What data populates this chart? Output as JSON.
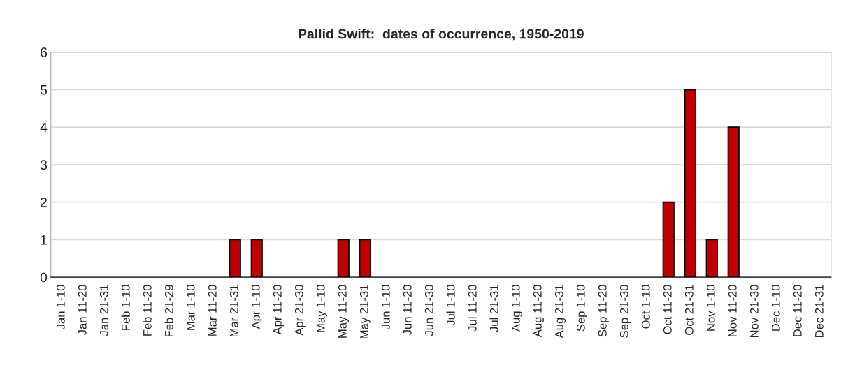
{
  "chart_data": {
    "type": "bar",
    "title": "Pallid Swift:  dates of occurrence, 1950-2019",
    "categories": [
      "Jan 1-10",
      "Jan 11-20",
      "Jan 21-31",
      "Feb 1-10",
      "Feb 11-20",
      "Feb 21-29",
      "Mar 1-10",
      "Mar 11-20",
      "Mar 21-31",
      "Apr 1-10",
      "Apr 11-20",
      "Apr 21-30",
      "May 1-10",
      "May 11-20",
      "May 21-31",
      "Jun 1-10",
      "Jun 11-20",
      "Jun 21-30",
      "Jul 1-10",
      "Jul 11-20",
      "Jul 21-31",
      "Aug 1-10",
      "Aug 11-20",
      "Aug 21-31",
      "Sep 1-10",
      "Sep 11-20",
      "Sep 21-30",
      "Oct 1-10",
      "Oct 11-20",
      "Oct 21-31",
      "Nov 1-10",
      "Nov 11-20",
      "Nov 21-30",
      "Dec 1-10",
      "Dec 11-20",
      "Dec 21-31"
    ],
    "values": [
      0,
      0,
      0,
      0,
      0,
      0,
      0,
      0,
      1,
      1,
      0,
      0,
      0,
      1,
      1,
      0,
      0,
      0,
      0,
      0,
      0,
      0,
      0,
      0,
      0,
      0,
      0,
      0,
      2,
      5,
      1,
      4,
      0,
      0,
      0,
      0
    ],
    "color": "#c00000",
    "ylim": [
      0,
      6
    ],
    "yticks": [
      0,
      1,
      2,
      3,
      4,
      5,
      6
    ],
    "grid": "y",
    "legend": false
  }
}
